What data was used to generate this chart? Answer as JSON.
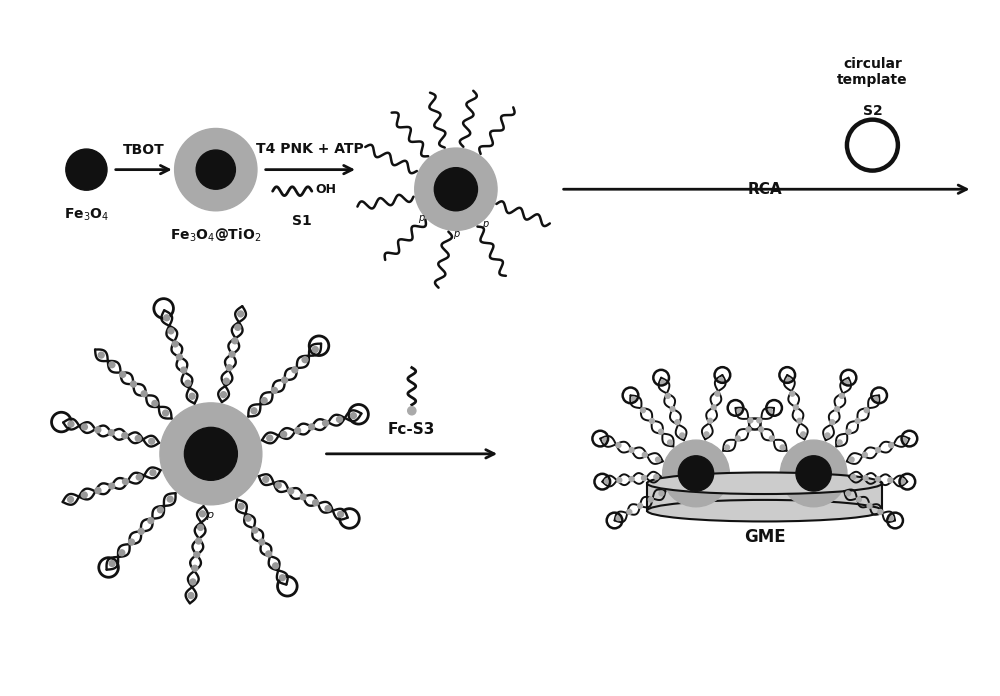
{
  "background_color": "#ffffff",
  "dark_color": "#111111",
  "gray_color": "#999999",
  "light_gray": "#cccccc",
  "labels": {
    "fe3o4": "Fe$_3$O$_4$",
    "fe3o4_tio2": "Fe$_3$O$_4$@TiO$_2$",
    "tbot": "TBOT",
    "t4pnk": "T4 PNK + ATP",
    "s1": "S1",
    "oh": "OH",
    "circular_template": "circular\ntemplate",
    "s2": "S2",
    "rca": "RCA",
    "fc_s3": "Fc-S3",
    "gme": "GME"
  },
  "figsize": [
    10.0,
    6.96
  ],
  "dpi": 100
}
